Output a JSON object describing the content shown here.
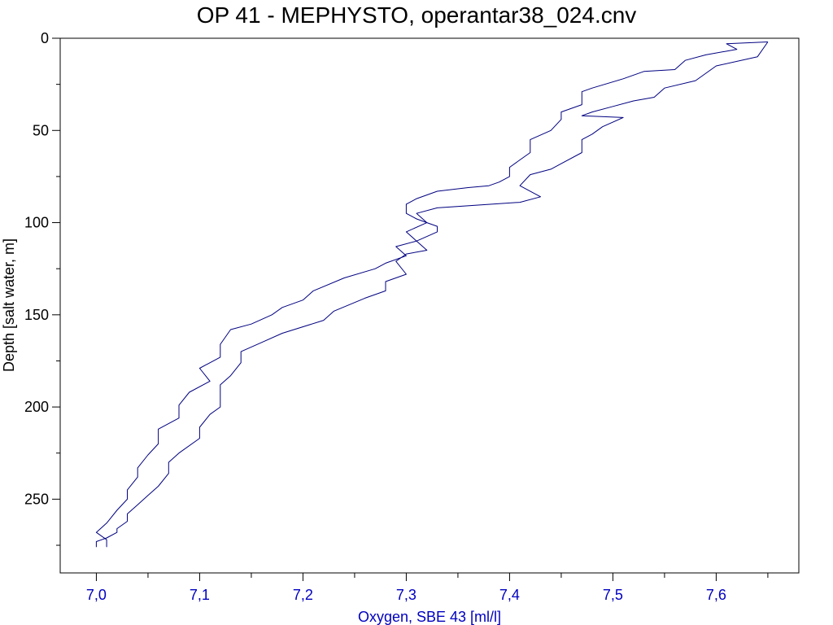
{
  "chart_data": {
    "type": "line",
    "title": "OP 41 - MEPHYSTO, operantar38_024.cnv",
    "xlabel": "Oxygen, SBE 43 [ml/l]",
    "ylabel": "Depth [salt water, m]",
    "xlim": [
      6.965,
      7.68
    ],
    "ylim": [
      0,
      290
    ],
    "y_inverted": true,
    "x_ticks": [
      7.0,
      7.1,
      7.2,
      7.3,
      7.4,
      7.5,
      7.6
    ],
    "x_tick_labels": [
      "7,0",
      "7,1",
      "7,2",
      "7,3",
      "7,4",
      "7,5",
      "7,6"
    ],
    "y_ticks": [
      0,
      50,
      100,
      150,
      200,
      250
    ],
    "y_tick_labels": [
      "0",
      "50",
      "100",
      "150",
      "200",
      "250"
    ],
    "grid": false,
    "colors": {
      "series": "#000080",
      "axis_labels_x": "#0000c0",
      "text": "#000000"
    },
    "series": [
      {
        "x": [
          7.65,
          7.61,
          7.62,
          7.59,
          7.57,
          7.56,
          7.53,
          7.51,
          7.48,
          7.47,
          7.47,
          7.45,
          7.45,
          7.44,
          7.42,
          7.42,
          7.41,
          7.4,
          7.4,
          7.39,
          7.38,
          7.36,
          7.33,
          7.31,
          7.3,
          7.3,
          7.31,
          7.32,
          7.3,
          7.31,
          7.29,
          7.3,
          7.28,
          7.27,
          7.24,
          7.21,
          7.2,
          7.18,
          7.17,
          7.15,
          7.13,
          7.12,
          7.12,
          7.1,
          7.11,
          7.09,
          7.08,
          7.08,
          7.06,
          7.06,
          7.05,
          7.04,
          7.04,
          7.03,
          7.03,
          7.02,
          7.01,
          7.0,
          7.01,
          7.01
        ],
        "y": [
          2,
          3,
          6,
          9,
          12,
          17,
          18,
          22,
          27,
          29,
          36,
          40,
          44,
          50,
          55,
          62,
          66,
          70,
          75,
          78,
          80,
          81,
          83,
          87,
          90,
          95,
          98,
          100,
          105,
          110,
          113,
          118,
          122,
          125,
          130,
          137,
          142,
          146,
          150,
          155,
          158,
          166,
          173,
          179,
          186,
          192,
          199,
          206,
          212,
          220,
          226,
          233,
          238,
          245,
          250,
          256,
          263,
          268,
          272,
          276
        ]
      },
      {
        "x": [
          7.65,
          7.64,
          7.6,
          7.58,
          7.55,
          7.54,
          7.52,
          7.5,
          7.48,
          7.47,
          7.51,
          7.49,
          7.48,
          7.47,
          7.47,
          7.45,
          7.44,
          7.42,
          7.41,
          7.43,
          7.41,
          7.33,
          7.31,
          7.32,
          7.33,
          7.33,
          7.31,
          7.32,
          7.3,
          7.29,
          7.3,
          7.28,
          7.28,
          7.26,
          7.23,
          7.22,
          7.18,
          7.16,
          7.14,
          7.14,
          7.13,
          7.12,
          7.12,
          7.12,
          7.11,
          7.1,
          7.1,
          7.08,
          7.07,
          7.07,
          7.06,
          7.05,
          7.04,
          7.03,
          7.03,
          7.02,
          7.02,
          7.01,
          7.0,
          7.0
        ],
        "y": [
          2,
          10,
          15,
          23,
          27,
          32,
          34,
          37,
          40,
          42,
          43,
          48,
          52,
          55,
          62,
          68,
          71,
          74,
          80,
          86,
          89,
          92,
          95,
          100,
          102,
          105,
          110,
          115,
          117,
          121,
          128,
          132,
          137,
          141,
          148,
          153,
          160,
          165,
          170,
          176,
          183,
          188,
          195,
          200,
          204,
          211,
          217,
          225,
          230,
          236,
          243,
          248,
          253,
          258,
          262,
          266,
          268,
          271,
          273,
          276
        ]
      }
    ]
  }
}
